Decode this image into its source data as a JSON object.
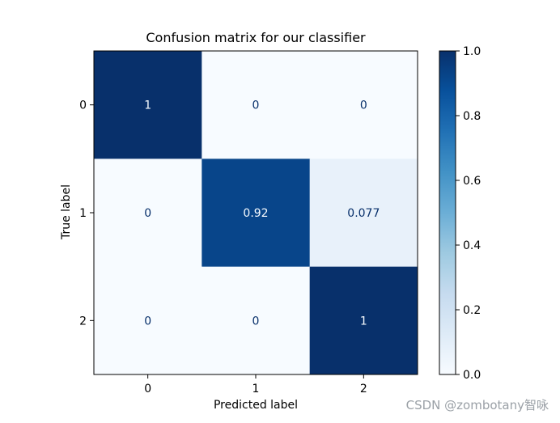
{
  "watermark": "CSDN @zombotany智咏",
  "chart_data": {
    "type": "heatmap",
    "title": "Confusion matrix for our classifier",
    "xlabel": "Predicted label",
    "ylabel": "True label",
    "x_categories": [
      "0",
      "1",
      "2"
    ],
    "y_categories": [
      "0",
      "1",
      "2"
    ],
    "values": [
      [
        1,
        0,
        0
      ],
      [
        0,
        0.92,
        0.077
      ],
      [
        0,
        0,
        1
      ]
    ],
    "cell_labels": [
      [
        "1",
        "0",
        "0"
      ],
      [
        "0",
        "0.92",
        "0.077"
      ],
      [
        "0",
        "0",
        "1"
      ]
    ],
    "colormap": "Blues",
    "colorbar": {
      "range": [
        0.0,
        1.0
      ],
      "ticks": [
        0.0,
        0.2,
        0.4,
        0.6,
        0.8,
        1.0
      ],
      "tick_labels": [
        "0.0",
        "0.2",
        "0.4",
        "0.6",
        "0.8",
        "1.0"
      ]
    },
    "colors": {
      "low": "#f7fbff",
      "high": "#08306b",
      "text_on_dark": "#f7fbff",
      "text_on_light": "#08306b"
    }
  }
}
